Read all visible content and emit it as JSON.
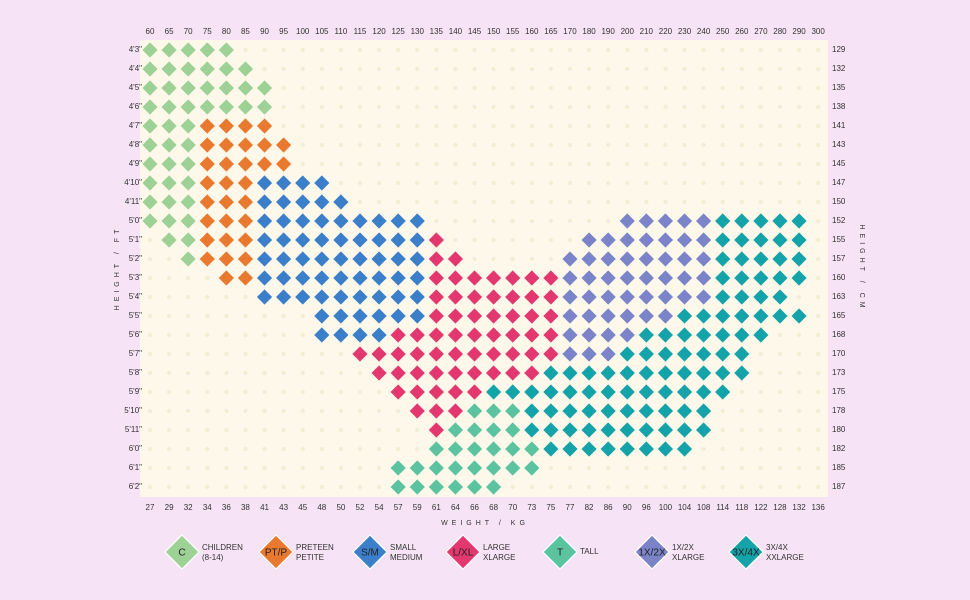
{
  "chart_data": {
    "type": "size-grid",
    "x_top_categories": [
      "60",
      "65",
      "70",
      "75",
      "80",
      "85",
      "90",
      "95",
      "100",
      "105",
      "110",
      "115",
      "120",
      "125",
      "130",
      "135",
      "140",
      "145",
      "150",
      "155",
      "160",
      "165",
      "170",
      "180",
      "190",
      "200",
      "210",
      "220",
      "230",
      "240",
      "250",
      "260",
      "270",
      "280",
      "290",
      "300"
    ],
    "x_bottom_categories": [
      "27",
      "29",
      "32",
      "34",
      "36",
      "38",
      "41",
      "43",
      "45",
      "48",
      "50",
      "52",
      "54",
      "57",
      "59",
      "61",
      "64",
      "66",
      "68",
      "70",
      "73",
      "75",
      "77",
      "82",
      "86",
      "90",
      "96",
      "100",
      "104",
      "108",
      "114",
      "118",
      "122",
      "128",
      "132",
      "136"
    ],
    "y_left_categories": [
      "4'3\"",
      "4'4\"",
      "4'5\"",
      "4'6\"",
      "4'7\"",
      "4'8\"",
      "4'9\"",
      "4'10\"",
      "4'11\"",
      "5'0\"",
      "5'1\"",
      "5'2\"",
      "5'3\"",
      "5'4\"",
      "5'5\"",
      "5'6\"",
      "5'7\"",
      "5'8\"",
      "5'9\"",
      "5'10\"",
      "5'11\"",
      "6'0\"",
      "6'1\"",
      "6'2\""
    ],
    "y_right_categories": [
      "129",
      "132",
      "135",
      "138",
      "141",
      "143",
      "145",
      "147",
      "150",
      "152",
      "155",
      "157",
      "160",
      "163",
      "165",
      "168",
      "170",
      "173",
      "175",
      "178",
      "180",
      "182",
      "185",
      "187"
    ],
    "x_label": "WEIGHT / KG",
    "y_label": "HEIGHT / FT",
    "y2_label": "HEIGHT / CM",
    "series": [
      {
        "name": "C",
        "label": [
          "CHILDREN",
          "(8-14)"
        ],
        "color": "#9dd196",
        "runs": [
          [
            0,
            0,
            4
          ],
          [
            1,
            0,
            5
          ],
          [
            2,
            0,
            6
          ],
          [
            3,
            0,
            6
          ],
          [
            4,
            0,
            2
          ],
          [
            5,
            0,
            2
          ],
          [
            6,
            0,
            2
          ],
          [
            7,
            0,
            2
          ],
          [
            8,
            0,
            2
          ],
          [
            9,
            0,
            2
          ],
          [
            10,
            1,
            2
          ],
          [
            11,
            2,
            2
          ]
        ]
      },
      {
        "name": "PT/P",
        "label": [
          "PRETEEN",
          "PETITE"
        ],
        "color": "#e8792e",
        "runs": [
          [
            4,
            3,
            6
          ],
          [
            5,
            3,
            7
          ],
          [
            6,
            3,
            7
          ],
          [
            7,
            3,
            5
          ],
          [
            8,
            3,
            5
          ],
          [
            9,
            3,
            5
          ],
          [
            10,
            3,
            5
          ],
          [
            11,
            3,
            5
          ],
          [
            12,
            4,
            5
          ]
        ]
      },
      {
        "name": "S/M",
        "label": [
          "SMALL",
          "MEDIUM"
        ],
        "color": "#3b7fcb",
        "runs": [
          [
            7,
            6,
            9
          ],
          [
            8,
            6,
            10
          ],
          [
            9,
            6,
            14
          ],
          [
            10,
            6,
            14
          ],
          [
            11,
            6,
            14
          ],
          [
            12,
            6,
            14
          ],
          [
            13,
            6,
            14
          ],
          [
            14,
            9,
            14
          ],
          [
            15,
            9,
            12
          ]
        ]
      },
      {
        "name": "L/XL",
        "label": [
          "LARGE",
          "XLARGE"
        ],
        "color": "#e2386f",
        "runs": [
          [
            10,
            15,
            15
          ],
          [
            11,
            15,
            16
          ],
          [
            12,
            15,
            21
          ],
          [
            13,
            15,
            21
          ],
          [
            14,
            15,
            21
          ],
          [
            15,
            13,
            21
          ],
          [
            16,
            11,
            21
          ],
          [
            17,
            12,
            20
          ],
          [
            18,
            13,
            17
          ],
          [
            19,
            14,
            16
          ],
          [
            20,
            15,
            15
          ]
        ]
      },
      {
        "name": "T",
        "label": [
          "TALL"
        ],
        "color": "#5cc3a0",
        "runs": [
          [
            19,
            17,
            19
          ],
          [
            20,
            16,
            19
          ],
          [
            21,
            15,
            20
          ],
          [
            22,
            13,
            20
          ],
          [
            23,
            13,
            18
          ]
        ]
      },
      {
        "name": "1X/2X",
        "label": [
          "1X/2X",
          "XLARGE"
        ],
        "color": "#7b84c9",
        "runs": [
          [
            9,
            25,
            29
          ],
          [
            10,
            23,
            29
          ],
          [
            11,
            22,
            29
          ],
          [
            12,
            22,
            29
          ],
          [
            13,
            22,
            29
          ],
          [
            14,
            22,
            27
          ],
          [
            15,
            22,
            25
          ],
          [
            16,
            22,
            24
          ]
        ]
      },
      {
        "name": "3X/4X",
        "label": [
          "3X/4X",
          "XXLARGE"
        ],
        "color": "#14a3a8",
        "runs": [
          [
            9,
            30,
            34
          ],
          [
            10,
            30,
            34
          ],
          [
            11,
            30,
            34
          ],
          [
            12,
            30,
            34
          ],
          [
            13,
            30,
            33
          ],
          [
            14,
            28,
            34
          ],
          [
            15,
            26,
            32
          ],
          [
            16,
            25,
            31
          ],
          [
            17,
            21,
            31
          ],
          [
            18,
            18,
            30
          ],
          [
            19,
            20,
            29
          ],
          [
            20,
            20,
            29
          ],
          [
            21,
            21,
            28
          ]
        ]
      }
    ]
  }
}
